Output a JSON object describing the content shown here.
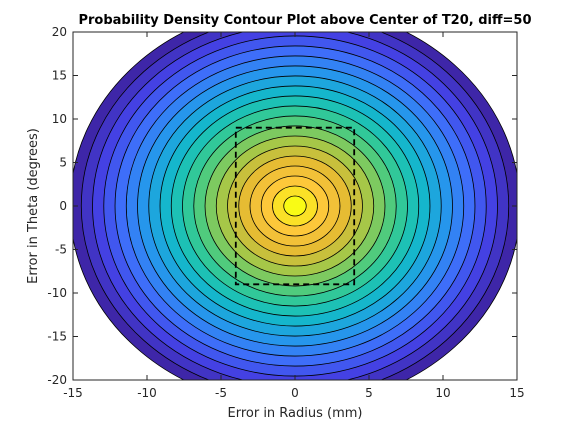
{
  "chart_data": {
    "type": "contour",
    "title": "Probability Density Contour Plot above Center of T20, diff=50",
    "xlabel": "Error in Radius (mm)",
    "ylabel": "Error in Theta (degrees)",
    "xlim": [
      -15,
      15
    ],
    "ylim": [
      -20,
      20
    ],
    "x_ticks": [
      "-15",
      "-10",
      "-5",
      "0",
      "5",
      "10",
      "15"
    ],
    "y_ticks": [
      "20",
      "15",
      "10",
      "5",
      "0",
      "-5",
      "-10",
      "-15",
      "-20"
    ],
    "x_tick_values": [
      -15,
      -10,
      -5,
      0,
      5,
      10,
      15
    ],
    "y_tick_values": [
      20,
      15,
      10,
      5,
      0,
      -5,
      -10,
      -15,
      -20
    ],
    "center": [
      0,
      0
    ],
    "outer_contour_semi_axes": [
      15.2,
      23.0
    ],
    "contour_levels": 20,
    "filled": true,
    "colormap": [
      "#3e26a8",
      "#4443e6",
      "#3d73fb",
      "#229ce9",
      "#12bdc4",
      "#3ccc8a",
      "#9bc94c",
      "#e3bb32",
      "#fdc53c",
      "#f9fb15"
    ],
    "contour_line_color": "#000000",
    "region_box": {
      "x": [
        -4,
        4
      ],
      "y": [
        -9,
        9
      ],
      "style": "dashed",
      "color": "#000000"
    },
    "grid": false,
    "legend": "none"
  }
}
